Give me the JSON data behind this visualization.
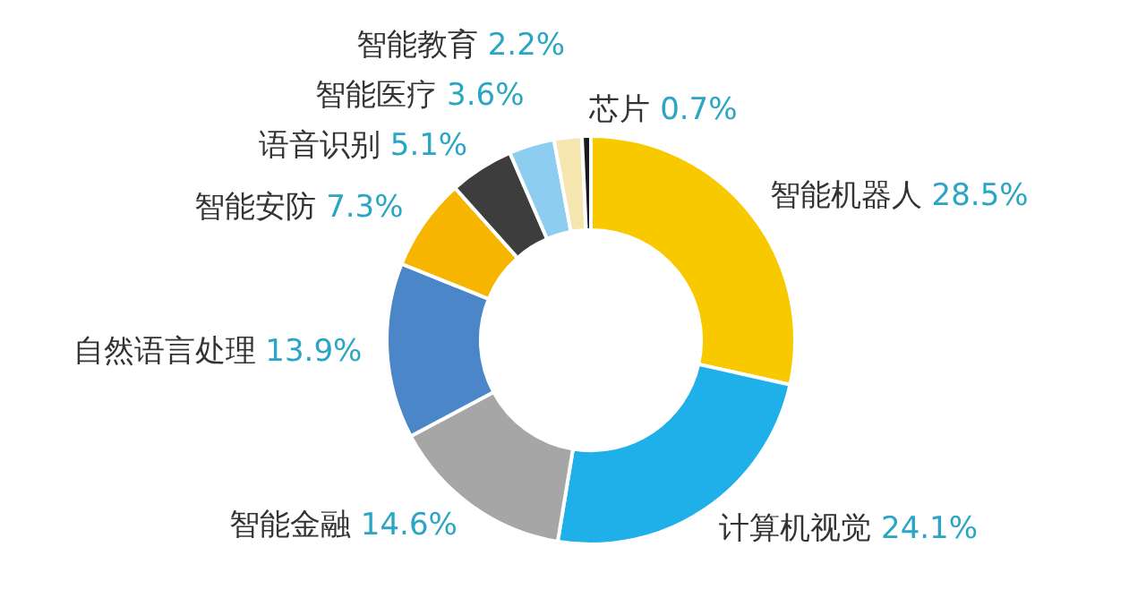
{
  "chart_data": {
    "type": "donut",
    "categories": [
      "智能机器人",
      "计算机视觉",
      "智能金融",
      "自然语言处理",
      "智能安防",
      "语音识别",
      "智能医疗",
      "智能教育",
      "芯片"
    ],
    "values": [
      28.5,
      24.1,
      14.6,
      13.9,
      7.3,
      5.1,
      3.6,
      2.2,
      0.7
    ],
    "value_labels": [
      "28.5%",
      "24.1%",
      "14.6%",
      "13.9%",
      "7.3%",
      "5.1%",
      "3.6%",
      "2.2%",
      "0.7%"
    ],
    "colors": [
      "#f9c900",
      "#1fb0ea",
      "#a6a6a6",
      "#4a86c8",
      "#f7b500",
      "#3d3d3d",
      "#8ccdf0",
      "#f5e6b0",
      "#1a1a1a"
    ],
    "legend": false
  }
}
